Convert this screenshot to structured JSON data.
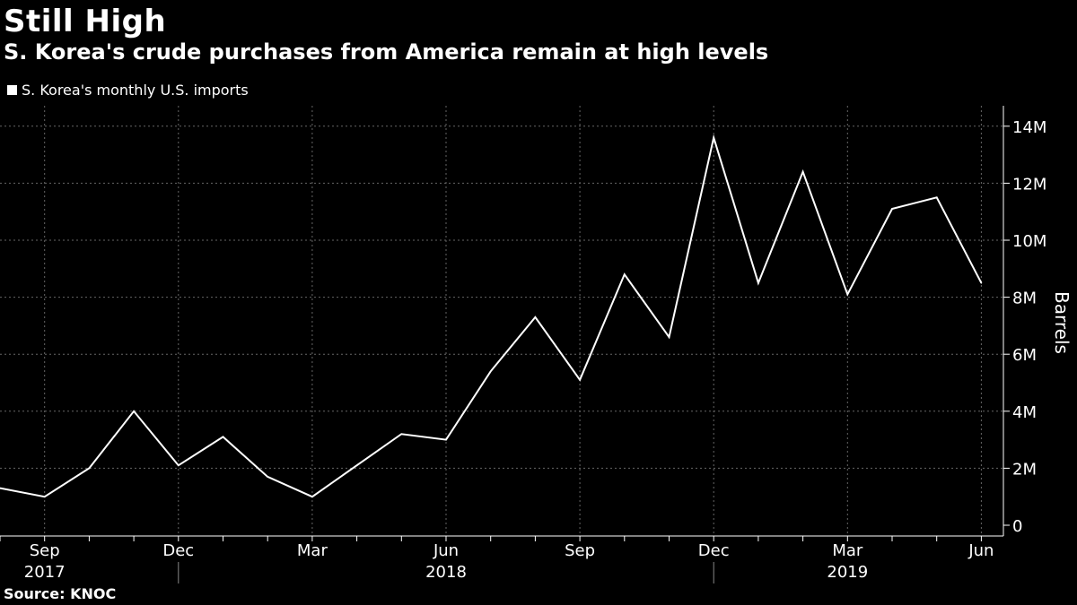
{
  "title": "Still High",
  "subtitle": "S. Korea's crude purchases from America remain at high levels",
  "source": "Source: KNOC",
  "colors": {
    "background": "#000000",
    "line": "#ffffff",
    "grid": "#666666"
  },
  "chart_data": {
    "type": "line",
    "title": "Still High",
    "subtitle": "S. Korea's crude purchases from America remain at high levels",
    "xlabel": "",
    "ylabel": "Barrels",
    "legend": "top-left",
    "grid": true,
    "ylim": [
      0,
      14500000
    ],
    "yticks": [
      0,
      2000000,
      4000000,
      6000000,
      8000000,
      10000000,
      12000000,
      14000000
    ],
    "ytick_labels": [
      "0",
      "2M",
      "4M",
      "6M",
      "8M",
      "10M",
      "12M",
      "14M"
    ],
    "x": [
      "2017-08",
      "2017-09",
      "2017-10",
      "2017-11",
      "2017-12",
      "2018-01",
      "2018-02",
      "2018-03",
      "2018-04",
      "2018-05",
      "2018-06",
      "2018-07",
      "2018-08",
      "2018-09",
      "2018-10",
      "2018-11",
      "2018-12",
      "2019-01",
      "2019-02",
      "2019-03",
      "2019-04",
      "2019-05",
      "2019-06"
    ],
    "xtick_labels": [
      {
        "x": "2017-09",
        "label": "Sep"
      },
      {
        "x": "2017-12",
        "label": "Dec"
      },
      {
        "x": "2018-03",
        "label": "Mar"
      },
      {
        "x": "2018-06",
        "label": "Jun"
      },
      {
        "x": "2018-09",
        "label": "Sep"
      },
      {
        "x": "2018-12",
        "label": "Dec"
      },
      {
        "x": "2019-03",
        "label": "Mar"
      },
      {
        "x": "2019-06",
        "label": "Jun"
      }
    ],
    "year_labels": [
      {
        "x": "2017-09",
        "label": "2017"
      },
      {
        "x": "2018-06",
        "label": "2018"
      },
      {
        "x": "2019-03",
        "label": "2019"
      }
    ],
    "year_dividers": [
      "2017-12",
      "2018-12"
    ],
    "series": [
      {
        "name": "S. Korea's monthly U.S. imports",
        "values": [
          1300000,
          1000000,
          2000000,
          4000000,
          2100000,
          3100000,
          1700000,
          1000000,
          2100000,
          3200000,
          3000000,
          5400000,
          7300000,
          5100000,
          8800000,
          6600000,
          13600000,
          8500000,
          12400000,
          8100000,
          11100000,
          11500000,
          8500000
        ]
      }
    ]
  }
}
